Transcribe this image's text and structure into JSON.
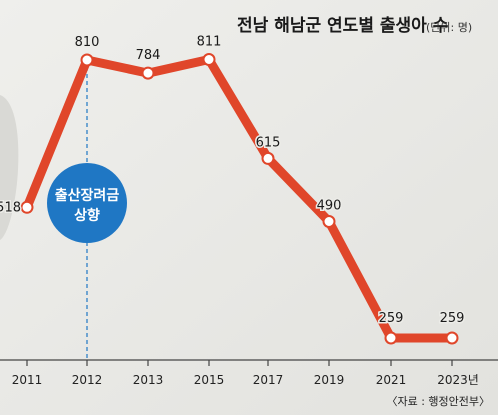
{
  "chart_data": {
    "type": "line",
    "title": "전남 해남군 연도별 출생아 수",
    "unit_note": "(단위: 명)",
    "categories": [
      "2011",
      "2012",
      "2013",
      "2015",
      "2017",
      "2019",
      "2021",
      "2023년"
    ],
    "series": [
      {
        "values": [
          518,
          810,
          784,
          811,
          615,
          490,
          259,
          259
        ]
      }
    ],
    "data_labels": [
      "518",
      "810",
      "784",
      "811",
      "615",
      "490",
      "259",
      "259"
    ],
    "annotation": {
      "lines": [
        "출산장려금",
        "상향"
      ],
      "at_category": "2012"
    },
    "source": "〈자료 : 행정안전부〉",
    "ylim": [
      200,
      850
    ],
    "grid": false,
    "line_color": "#e0462a",
    "badge_color": "#1f77c4",
    "background": "#e8e8e4"
  }
}
